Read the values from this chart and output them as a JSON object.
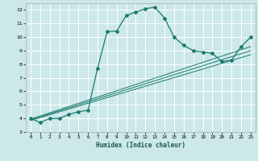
{
  "xlabel": "Humidex (Indice chaleur)",
  "bg_color": "#cce8e8",
  "grid_color": "#ffffff",
  "line_color": "#1a7a6e",
  "xlim": [
    -0.5,
    23.5
  ],
  "ylim": [
    3,
    12.5
  ],
  "xticks": [
    0,
    1,
    2,
    3,
    4,
    5,
    6,
    7,
    8,
    9,
    10,
    11,
    12,
    13,
    14,
    15,
    16,
    17,
    18,
    19,
    20,
    21,
    22,
    23
  ],
  "yticks": [
    3,
    4,
    5,
    6,
    7,
    8,
    9,
    10,
    11,
    12
  ],
  "main_x": [
    0,
    1,
    2,
    3,
    4,
    5,
    6,
    7,
    8,
    9,
    10,
    11,
    12,
    13,
    14,
    15,
    16,
    17,
    18,
    19,
    20,
    21,
    22,
    23
  ],
  "main_y": [
    4,
    3.7,
    4.0,
    4.0,
    4.3,
    4.5,
    4.6,
    7.7,
    10.4,
    10.45,
    11.6,
    11.85,
    12.1,
    12.2,
    11.4,
    10.0,
    9.4,
    9.0,
    8.9,
    8.8,
    8.2,
    8.3,
    9.3,
    10.0
  ],
  "line2_x": [
    0,
    23
  ],
  "line2_y": [
    3.85,
    8.7
  ],
  "line3_x": [
    0,
    23
  ],
  "line3_y": [
    3.9,
    9.0
  ],
  "line4_x": [
    0,
    23
  ],
  "line4_y": [
    3.95,
    9.3
  ]
}
